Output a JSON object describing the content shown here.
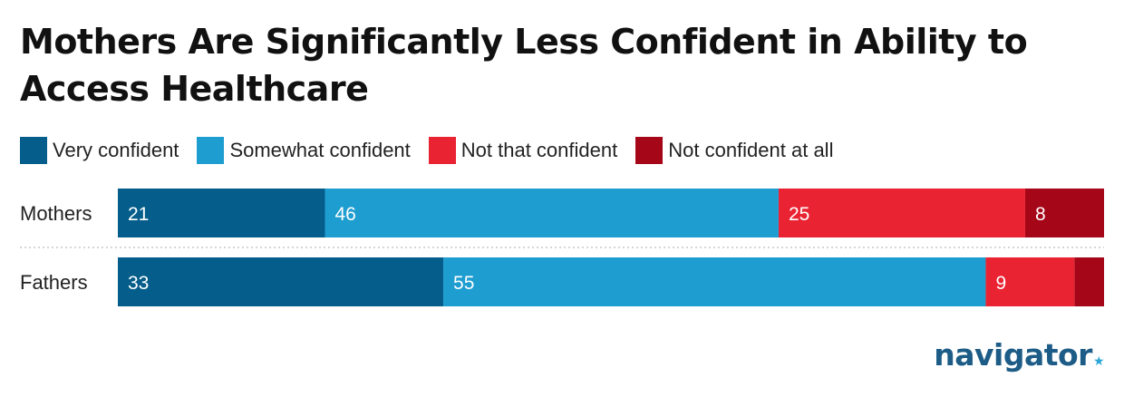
{
  "title": "Mothers Are Significantly Less Confident in Ability to Access Healthcare",
  "logo_text": "navigator",
  "logo_mark": "★",
  "chart_data": {
    "type": "bar",
    "orientation": "horizontal",
    "stacked": true,
    "categories": [
      "Mothers",
      "Fathers"
    ],
    "series": [
      {
        "name": "Very confident",
        "color": "#045d8a",
        "values": [
          21,
          33
        ]
      },
      {
        "name": "Somewhat confident",
        "color": "#1e9dd0",
        "values": [
          46,
          55
        ]
      },
      {
        "name": "Not that confident",
        "color": "#ea2333",
        "values": [
          25,
          9
        ]
      },
      {
        "name": "Not confident at all",
        "color": "#a50618",
        "values": [
          8,
          3
        ]
      }
    ],
    "data_labels": [
      [
        "21",
        "33"
      ],
      [
        "46",
        "55"
      ],
      [
        "25",
        "9"
      ],
      [
        "8",
        ""
      ]
    ],
    "xlim": [
      0,
      100
    ],
    "legend_position": "top-left",
    "grid": false
  }
}
